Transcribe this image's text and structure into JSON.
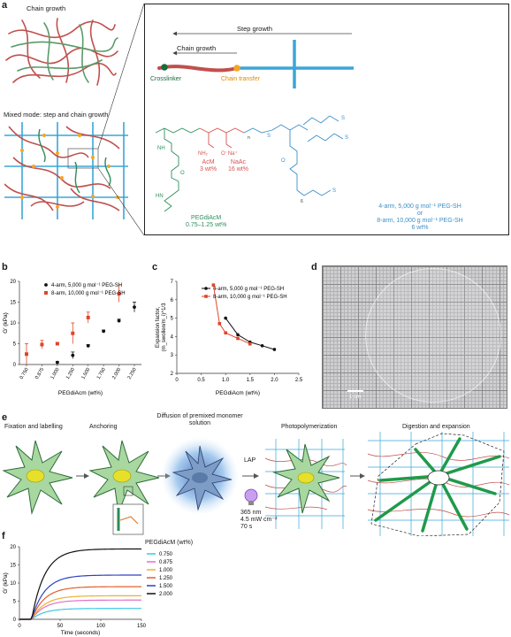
{
  "panel_labels": {
    "a": "a",
    "b": "b",
    "c": "c",
    "d": "d",
    "e": "e",
    "f": "f"
  },
  "panel_a": {
    "chain_growth_title": "Chain growth",
    "mixed_mode_title": "Mixed mode: step and chain growth",
    "step_growth_label": "Step growth",
    "chain_growth_arrow_label": "Chain growth",
    "crosslinker_label": "Crosslinker",
    "chain_transfer_label": "Chain transfer",
    "acm_label": "AcM",
    "acm_wt": "3 wt%",
    "naac_label": "NaAc",
    "naac_wt": "16 wt%",
    "pegdiacm_label": "PEGdiAcM",
    "pegdiacm_wt": "0.75–1.25 wt%",
    "pegsh_line1": "4-arm, 5,000 g mol⁻¹ PEG-SH",
    "pegsh_or": "or",
    "pegsh_line2": "8-arm, 10,000 g mol⁻¹ PEG-SH",
    "pegsh_wt": "6 wt%",
    "nh2": "NH₂",
    "ona": "O⁻Na⁺",
    "hn": "HN",
    "nh": "NH",
    "o": "O",
    "s": "S",
    "n_sub": "n",
    "six_sub": "6",
    "colors": {
      "chain": "#c0504d",
      "crosslink": "#2e8b57",
      "chain_transfer": "#f5a623",
      "step": "#3aa6d6",
      "acm": "#d9534f",
      "peg": "#3a8fc8",
      "pegdiacm": "#2f8f5b"
    }
  },
  "panel_b": {
    "ylabel": "G′ (kPa)",
    "xlabel": "PEGdiAcm (wt%)",
    "legend": [
      "4-arm, 5,000 g mol⁻¹ PEG-SH",
      "8-arm, 10,000 g mol⁻¹ PEG-SH"
    ]
  },
  "panel_c": {
    "ylabel": "Expansion factor,",
    "ylabel2": "(m_swollen/m_i)^1/3",
    "xlabel": "PEGdiAcm (wt%)",
    "legend": [
      "4-arm, 5,000 g mol⁻¹ PEG-SH",
      "8-arm, 10,000 g mol⁻¹ PEG-SH"
    ]
  },
  "panel_d": {
    "scale_bar": "1 cm"
  },
  "panel_e": {
    "step1": "Fixation and labelling",
    "step2": "Anchoring",
    "step3": "Diffusion of premixed monomer solution",
    "step4": "Photopolymerization",
    "step5": "Digestion and expansion",
    "lap": "LAP",
    "wavelength": "365 nm",
    "intensity": "4.5 mW cm⁻²",
    "time": "70 s"
  },
  "panel_f": {
    "ylabel": "G′ (kPa)",
    "xlabel": "Time (seconds)",
    "legend_title": "PEGdiAcM (wt%)"
  },
  "chart_data": [
    {
      "type": "scatter",
      "panel": "b",
      "xlabel": "PEGdiAcm (wt%)",
      "ylabel": "G′ (kPa)",
      "ylim": [
        0,
        20
      ],
      "yticks": [
        0,
        5,
        10,
        15,
        20
      ],
      "categories": [
        "0.750",
        "0.875",
        "1.000",
        "1.250",
        "1.500",
        "1.750",
        "2.000",
        "2.250"
      ],
      "series": [
        {
          "name": "4-arm, 5,000 g mol⁻¹ PEG-SH",
          "color": "#111111",
          "x": [
            1.0,
            1.25,
            1.5,
            1.75,
            2.0,
            2.25
          ],
          "y": [
            0.5,
            2.2,
            4.5,
            8.0,
            10.5,
            13.8
          ],
          "err": [
            0.2,
            0.8,
            0.3,
            0.3,
            0.4,
            1.2
          ]
        },
        {
          "name": "8-arm, 10,000 g mol⁻¹ PEG-SH",
          "color": "#e0452b",
          "x": [
            0.75,
            0.875,
            1.0,
            1.25,
            1.5,
            2.0
          ],
          "y": [
            2.5,
            4.8,
            5.0,
            7.5,
            11.3,
            17.0
          ],
          "err": [
            2.5,
            1.0,
            0.3,
            2.5,
            1.3,
            2.0
          ]
        }
      ]
    },
    {
      "type": "line",
      "panel": "c",
      "xlabel": "PEGdiAcm (wt%)",
      "ylabel": "Expansion factor, (m_swollen/m_i)^1/3",
      "xlim": [
        0,
        2.5
      ],
      "ylim": [
        2,
        7
      ],
      "xticks": [
        0,
        0.5,
        1.0,
        1.5,
        2.0,
        2.5
      ],
      "yticks": [
        2,
        3,
        4,
        5,
        6,
        7
      ],
      "series": [
        {
          "name": "4-arm, 5,000 g mol⁻¹ PEG-SH",
          "color": "#111111",
          "x": [
            1.0,
            1.25,
            1.5,
            1.75,
            2.0
          ],
          "y": [
            5.0,
            4.1,
            3.7,
            3.5,
            3.3
          ]
        },
        {
          "name": "8-arm, 10,000 g mol⁻¹ PEG-SH",
          "color": "#e0452b",
          "x": [
            0.75,
            0.875,
            1.0,
            1.25,
            1.5
          ],
          "y": [
            6.8,
            4.7,
            4.2,
            3.9,
            3.6
          ]
        }
      ]
    },
    {
      "type": "line",
      "panel": "f",
      "xlabel": "Time (seconds)",
      "ylabel": "G′ (kPa)",
      "xlim": [
        0,
        150
      ],
      "ylim": [
        0,
        20
      ],
      "xticks": [
        0,
        50,
        100,
        150
      ],
      "yticks": [
        0,
        5,
        10,
        15,
        20
      ],
      "legend_title": "PEGdiAcM (wt%)",
      "series": [
        {
          "name": "0.750",
          "color": "#3cc8e6",
          "plateau": 3.0
        },
        {
          "name": "0.875",
          "color": "#e070c8",
          "plateau": 5.3
        },
        {
          "name": "1.000",
          "color": "#f0b030",
          "plateau": 6.5
        },
        {
          "name": "1.250",
          "color": "#e0602a",
          "plateau": 9.0
        },
        {
          "name": "1.500",
          "color": "#3040c0",
          "plateau": 12.2
        },
        {
          "name": "2.000",
          "color": "#111111",
          "plateau": 19.4
        }
      ],
      "onset_seconds": 15
    }
  ]
}
